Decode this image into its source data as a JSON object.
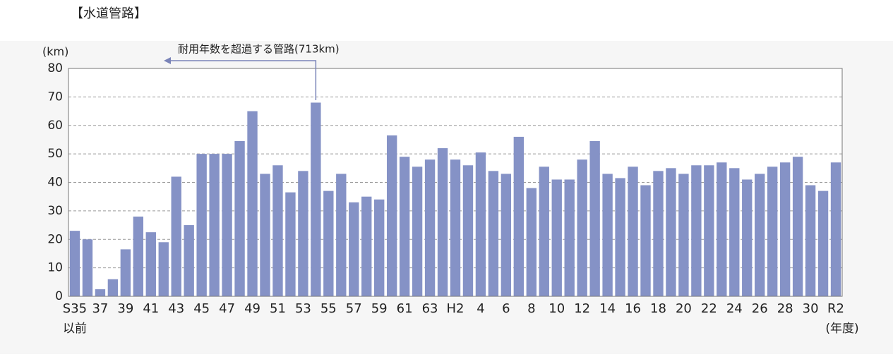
{
  "chart_data": {
    "type": "bar",
    "title": "【水道管路】",
    "y_label": "(km)",
    "x_label": "(年度)",
    "category_note": "以前",
    "annotation": "耐用年数を超過する管路(713km)",
    "categories": [
      "S35",
      null,
      "37",
      null,
      "39",
      null,
      "41",
      null,
      "43",
      null,
      "45",
      null,
      "47",
      null,
      "49",
      null,
      "51",
      null,
      "53",
      null,
      "55",
      null,
      "57",
      null,
      "59",
      null,
      "61",
      null,
      "63",
      null,
      "H2",
      null,
      "4",
      null,
      "6",
      null,
      "8",
      null,
      "10",
      null,
      "12",
      null,
      "14",
      null,
      "16",
      null,
      "18",
      null,
      "20",
      null,
      "22",
      null,
      "24",
      null,
      "26",
      null,
      "28",
      null,
      "30",
      null,
      "R2"
    ],
    "values": [
      23,
      20,
      2.5,
      6,
      16.5,
      28,
      22.5,
      19,
      42,
      25,
      50,
      50,
      50,
      54.5,
      65,
      43,
      46,
      36.5,
      44,
      68,
      37,
      43,
      33,
      35,
      34,
      56.5,
      49,
      45.5,
      48,
      52,
      48,
      46,
      50.5,
      44,
      43,
      56,
      38,
      45.5,
      41,
      41,
      48,
      54.5,
      43,
      41.5,
      45.5,
      39,
      44,
      45,
      43,
      46,
      46,
      47,
      45,
      41,
      43,
      45.5,
      47,
      49,
      39,
      37,
      47
    ],
    "color": "#8592c6",
    "ylim": [
      0,
      80
    ],
    "yticks": [
      0,
      10,
      20,
      30,
      40,
      50,
      60,
      70,
      80
    ],
    "grid": true
  }
}
